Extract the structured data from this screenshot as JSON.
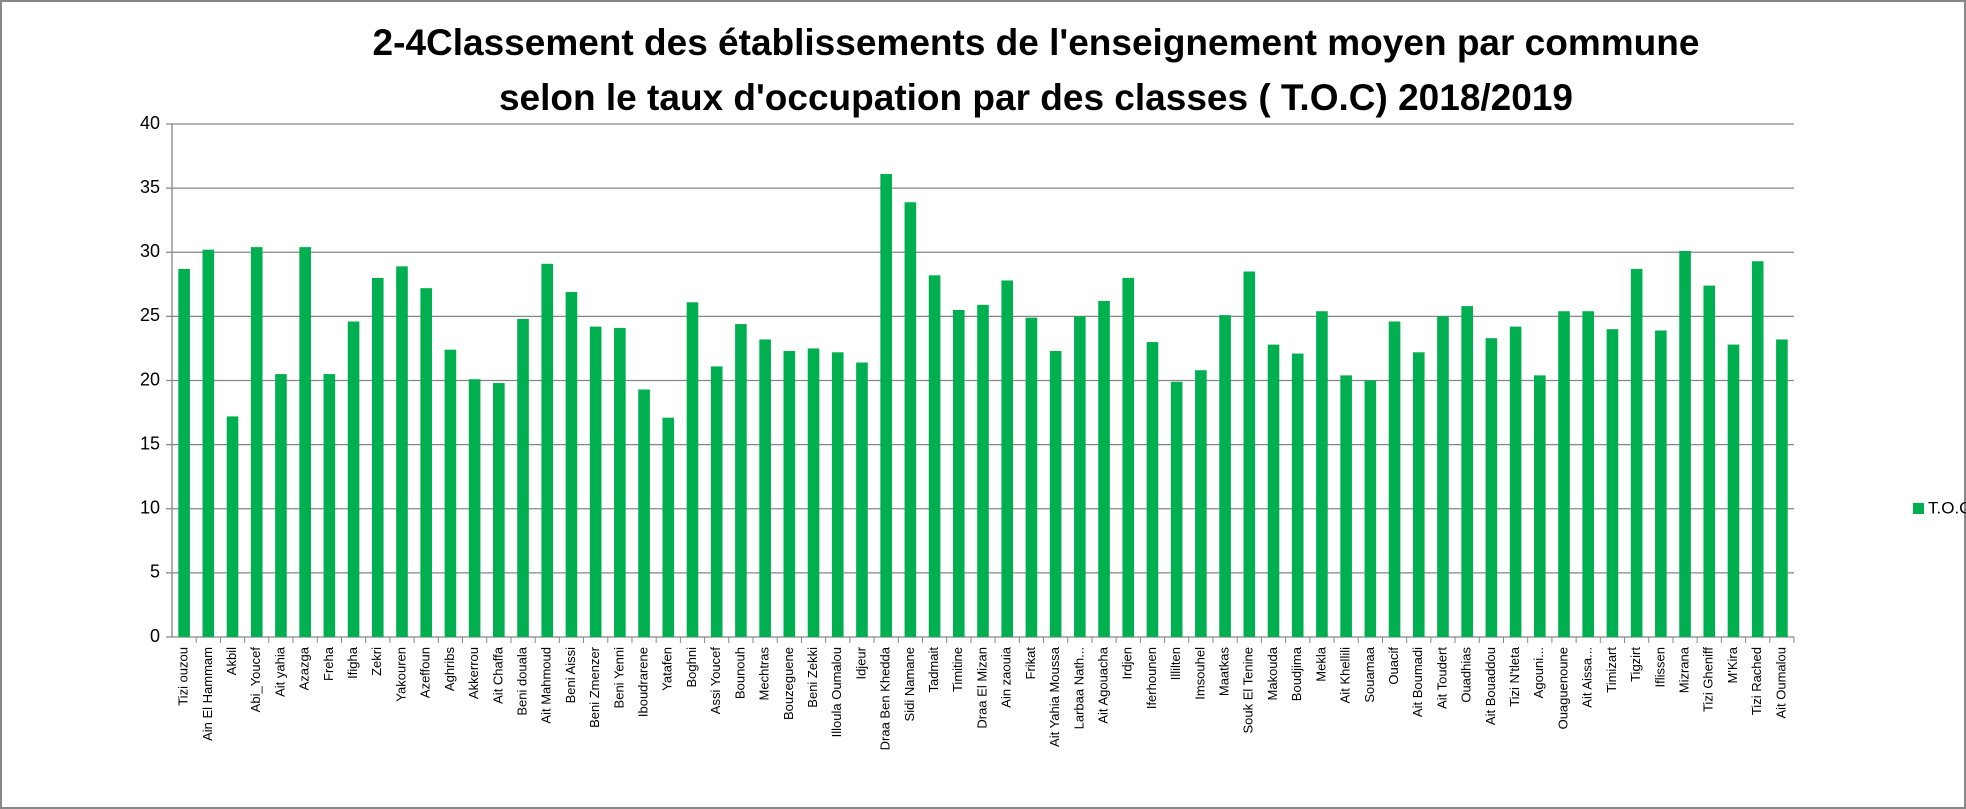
{
  "chart_data": {
    "type": "bar",
    "title": [
      "2-4Classement des établissements de l'enseignement moyen par commune",
      "selon le taux d'occupation par des classes ( T.O.C)  2018/2019"
    ],
    "categories": [
      "Tizi ouzou",
      "Ain El Hammam",
      "Akbil",
      "Abi_Youcef",
      "Ait yahia",
      "Azazga",
      "Freha",
      "Ifigha",
      "Zekri",
      "Yakouren",
      "Azeffoun",
      "Aghribs",
      "Akkerrou",
      "Ait Chaffa",
      "Beni douala",
      "Ait  Mahmoud",
      "Beni Aissi",
      "Beni Zmenzer",
      "Beni Yenni",
      "Iboudrarene",
      "Yatafen",
      "Boghni",
      "Assi Youcef",
      "Bounouh",
      "Mechtras",
      "Bouzeguene",
      "Beni Zekki",
      "Illoula Oumalou",
      "Idjeur",
      "Draa Ben Khedda",
      "Sidi Namane",
      "Tadmait",
      "Timitine",
      "Draa El Mizan",
      "Ain zaouia",
      "Frikat",
      "Ait Yahia Moussa",
      "Larbaa Nath...",
      "Ait Agouacha",
      "Irdjen",
      "Iferhounen",
      "Illilten",
      "Imsouhel",
      "Maatkas",
      "Souk El Tenine",
      "Makouda",
      "Boudjima",
      "Mekla",
      "Ait Khellili",
      "Souamaa",
      "Ouacif",
      "Ait Boumadi",
      "Ait Toudert",
      "Ouadhias",
      "Ait Bouaddou",
      "Tizi N'tleta",
      "Agouni...",
      "Ouaguenoune",
      "Ait Aissa...",
      "Timizart",
      "Tigzirt",
      "Iflissen",
      "Mizrana",
      "Tizi Gheniff",
      "M'Kira",
      "Tizi Rached",
      "Ait Oumalou"
    ],
    "series": [
      {
        "name": "T.O.C",
        "color": "#00b050",
        "values": [
          28.7,
          30.2,
          17.2,
          30.4,
          20.5,
          30.4,
          20.5,
          24.6,
          28,
          28.9,
          27.2,
          22.4,
          20.1,
          19.8,
          24.8,
          29.1,
          26.9,
          24.2,
          24.1,
          19.3,
          17.1,
          26.1,
          21.1,
          24.4,
          23.2,
          22.3,
          22.5,
          22.2,
          21.4,
          36.1,
          33.9,
          28.2,
          25.5,
          25.9,
          27.8,
          24.9,
          22.3,
          25,
          26.2,
          28,
          23,
          19.9,
          20.8,
          25.1,
          28.5,
          22.8,
          22.1,
          25.4,
          20.4,
          20,
          24.6,
          22.2,
          25,
          25.8,
          23.3,
          24.2,
          20.4,
          25.4,
          25.4,
          24,
          28.7,
          23.9,
          30.1,
          27.4,
          22.8,
          29.3,
          23.2
        ]
      }
    ],
    "ylim": [
      0,
      40
    ],
    "yticks": [
      0,
      5,
      10,
      15,
      20,
      25,
      30,
      35,
      40
    ],
    "grid": true,
    "legend": "right"
  }
}
